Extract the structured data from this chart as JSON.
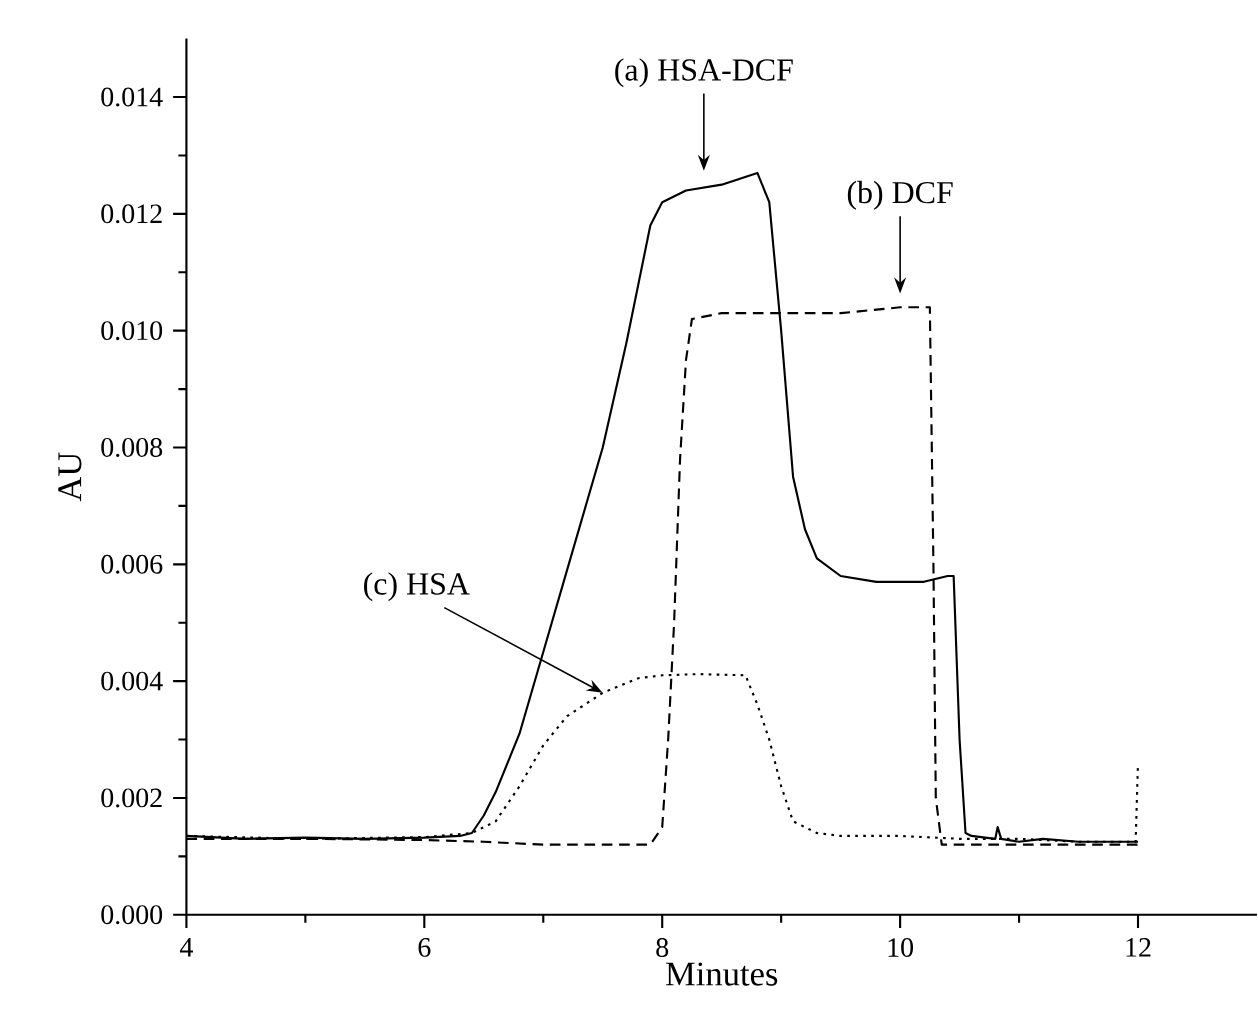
{
  "chart_data": {
    "type": "line",
    "xlabel": "Minutes",
    "ylabel": "AU",
    "xlim": [
      4,
      13
    ],
    "ylim": [
      0,
      0.015
    ],
    "xticks": [
      4,
      6,
      8,
      10,
      12
    ],
    "yticks": [
      {
        "value": 0,
        "label": "0.000"
      },
      {
        "value": 0.002,
        "label": "0.002"
      },
      {
        "value": 0.004,
        "label": "0.004"
      },
      {
        "value": 0.006,
        "label": "0.006"
      },
      {
        "value": 0.008,
        "label": "0.008"
      },
      {
        "value": 0.01,
        "label": "0.010"
      },
      {
        "value": 0.012,
        "label": "0.012"
      },
      {
        "value": 0.014,
        "label": "0.014"
      }
    ],
    "grid": false,
    "marker": "none",
    "series": [
      {
        "color": "#000000",
        "line_style": "solid",
        "x": [
          4,
          4.5,
          5,
          5.5,
          6,
          6.3,
          6.4,
          6.5,
          6.6,
          6.8,
          7,
          7.2,
          7.5,
          7.7,
          7.9,
          8,
          8.2,
          8.5,
          8.8,
          8.9,
          9,
          9.1,
          9.2,
          9.3,
          9.5,
          9.8,
          10,
          10.2,
          10.4,
          10.45,
          10.5,
          10.55,
          10.6,
          10.8,
          10.82,
          10.85,
          11,
          11.2,
          11.5,
          12
        ],
        "values": [
          0.00135,
          0.0013,
          0.00132,
          0.0013,
          0.00132,
          0.00135,
          0.0014,
          0.0017,
          0.0021,
          0.0031,
          0.0045,
          0.0059,
          0.008,
          0.0098,
          0.0118,
          0.0122,
          0.0124,
          0.0125,
          0.0127,
          0.0122,
          0.01,
          0.0075,
          0.0066,
          0.0061,
          0.0058,
          0.0057,
          0.0057,
          0.0057,
          0.0058,
          0.0058,
          0.003,
          0.0014,
          0.00135,
          0.0013,
          0.0015,
          0.0013,
          0.00125,
          0.0013,
          0.00125,
          0.00125
        ]
      },
      {
        "color": "#000000",
        "line_style": "dashed",
        "x": [
          4,
          5,
          6,
          6.5,
          7,
          7.5,
          7.9,
          8,
          8.05,
          8.1,
          8.15,
          8.2,
          8.25,
          8.5,
          9,
          9.5,
          10,
          10.25,
          10.28,
          10.3,
          10.35,
          10.5,
          11,
          11.5,
          12
        ],
        "values": [
          0.0013,
          0.0013,
          0.00128,
          0.00125,
          0.0012,
          0.0012,
          0.0012,
          0.0015,
          0.003,
          0.005,
          0.0078,
          0.0095,
          0.0102,
          0.0103,
          0.0103,
          0.0103,
          0.0104,
          0.0104,
          0.006,
          0.002,
          0.0012,
          0.0012,
          0.0012,
          0.0012,
          0.0012
        ]
      },
      {
        "color": "#000000",
        "line_style": "dotted",
        "x": [
          4,
          5,
          6,
          6.4,
          6.6,
          6.8,
          7,
          7.2,
          7.5,
          7.8,
          8,
          8.3,
          8.7,
          8.8,
          8.9,
          9,
          9.1,
          9.3,
          9.5,
          10,
          10.5,
          11,
          11.5,
          11.98,
          12
        ],
        "values": [
          0.00135,
          0.0013,
          0.00133,
          0.0014,
          0.0016,
          0.0022,
          0.0029,
          0.0034,
          0.0038,
          0.00405,
          0.0041,
          0.00412,
          0.0041,
          0.0036,
          0.003,
          0.0022,
          0.0016,
          0.0014,
          0.00135,
          0.00135,
          0.0013,
          0.0013,
          0.00125,
          0.00125,
          0.0026
        ]
      }
    ],
    "annotations": [
      {
        "text": "(a) HSA-DCF",
        "x": 8.35,
        "y": 0.0126
      },
      {
        "text": "(b) DCF",
        "x": 10,
        "y": 0.0105
      },
      {
        "text": "(c) HSA",
        "x": 7.5,
        "y": 0.0038
      }
    ]
  }
}
